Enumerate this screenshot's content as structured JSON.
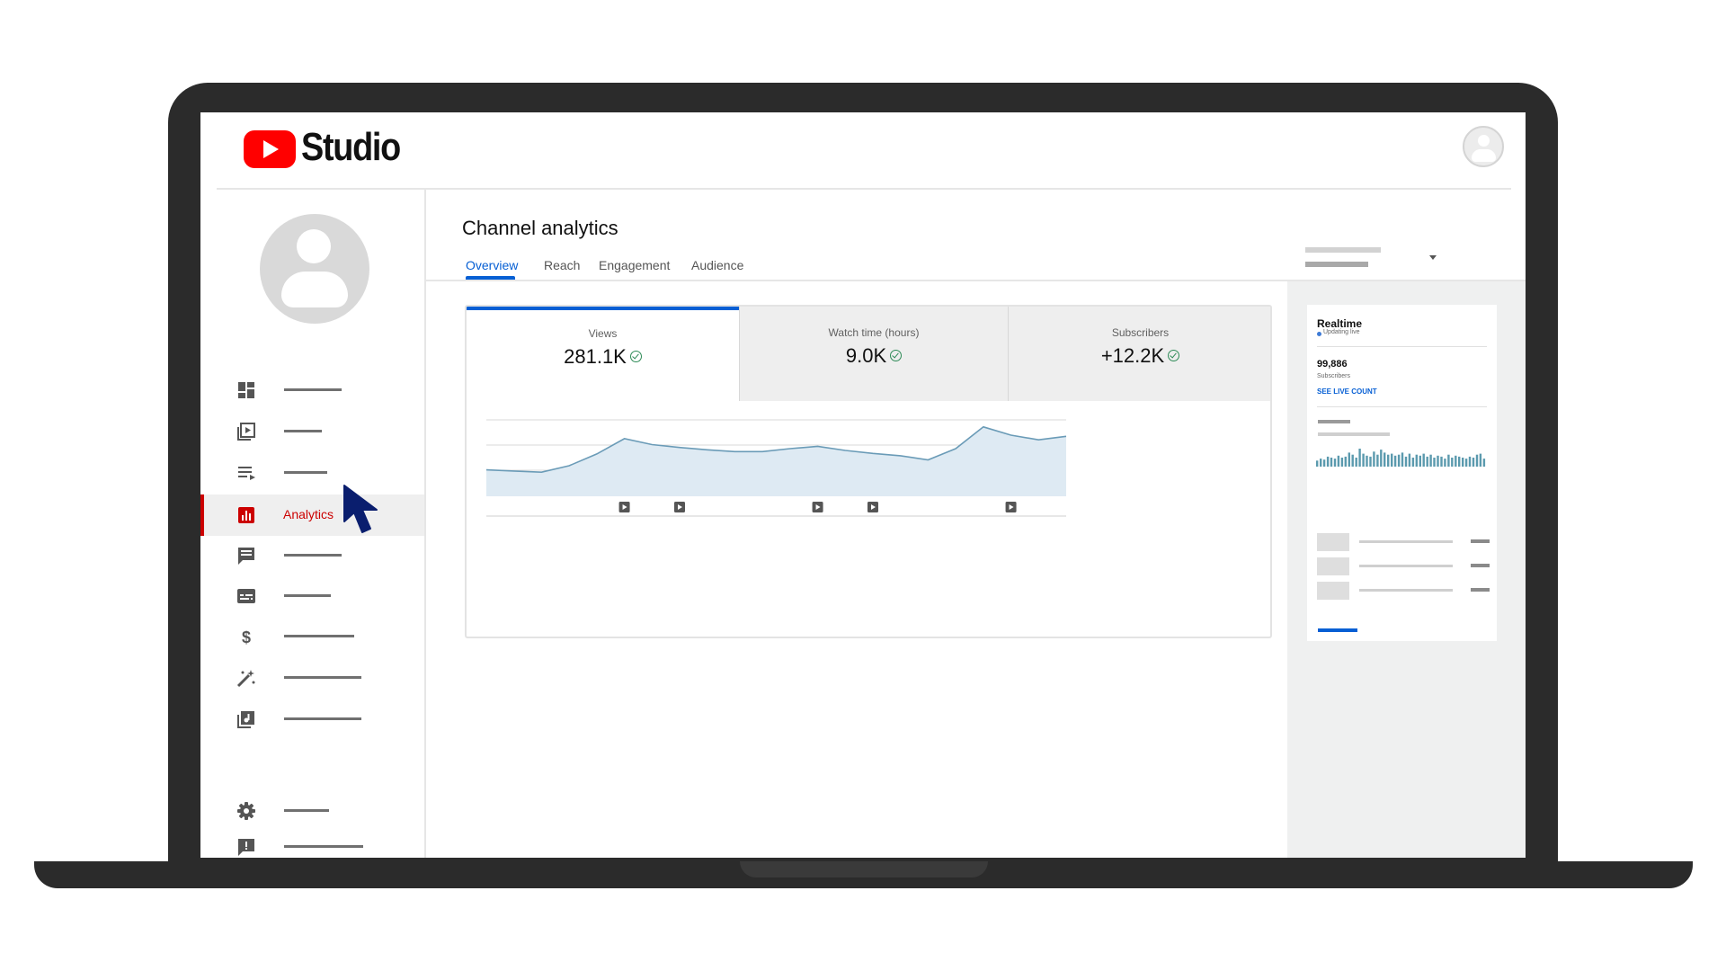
{
  "app": {
    "logo_text": "Studio",
    "accent_color": "#ff0000",
    "link_color": "#065fd4"
  },
  "sidebar": {
    "items": [
      {
        "icon": "dashboard-icon",
        "label": ""
      },
      {
        "icon": "content-icon",
        "label": ""
      },
      {
        "icon": "playlists-icon",
        "label": ""
      },
      {
        "icon": "analytics-icon",
        "label": "Analytics",
        "active": true
      },
      {
        "icon": "comments-icon",
        "label": ""
      },
      {
        "icon": "subtitles-icon",
        "label": ""
      },
      {
        "icon": "monetization-icon",
        "label": ""
      },
      {
        "icon": "customization-icon",
        "label": ""
      },
      {
        "icon": "audio-library-icon",
        "label": ""
      },
      {
        "icon": "settings-icon",
        "label": ""
      },
      {
        "icon": "feedback-icon",
        "label": ""
      }
    ]
  },
  "main": {
    "title": "Channel analytics",
    "tabs": [
      {
        "label": "Overview",
        "active": true
      },
      {
        "label": "Reach"
      },
      {
        "label": "Engagement"
      },
      {
        "label": "Audience"
      }
    ]
  },
  "metrics": {
    "views": {
      "label": "Views",
      "value": "281.1K"
    },
    "watch_time": {
      "label": "Watch time (hours)",
      "value": "9.0K"
    },
    "subscribers": {
      "label": "Subscribers",
      "value": "+12.2K"
    }
  },
  "chart_data": {
    "type": "area",
    "series": [
      {
        "values": [
          45,
          43,
          41,
          52,
          72,
          98,
          88,
          83,
          79,
          76,
          76,
          81,
          85,
          78,
          73,
          69,
          62,
          81,
          118,
          104,
          96,
          102
        ]
      }
    ],
    "video_markers": [
      5,
      7,
      12,
      14,
      19
    ],
    "ylim": [
      0,
      130
    ],
    "grid": true
  },
  "realtime": {
    "title": "Realtime",
    "live_text": "Updating live",
    "count": "99,886",
    "count_label": "Subscribers",
    "link": "SEE LIVE COUNT",
    "bars": [
      6,
      8,
      7,
      10,
      9,
      8,
      11,
      9,
      10,
      14,
      12,
      9,
      18,
      13,
      11,
      10,
      15,
      12,
      17,
      14,
      12,
      13,
      11,
      12,
      14,
      10,
      13,
      9,
      12,
      11,
      13,
      10,
      12,
      9,
      11,
      10,
      8,
      12,
      9,
      11,
      10,
      9,
      8,
      10,
      9,
      12,
      13,
      8
    ]
  }
}
